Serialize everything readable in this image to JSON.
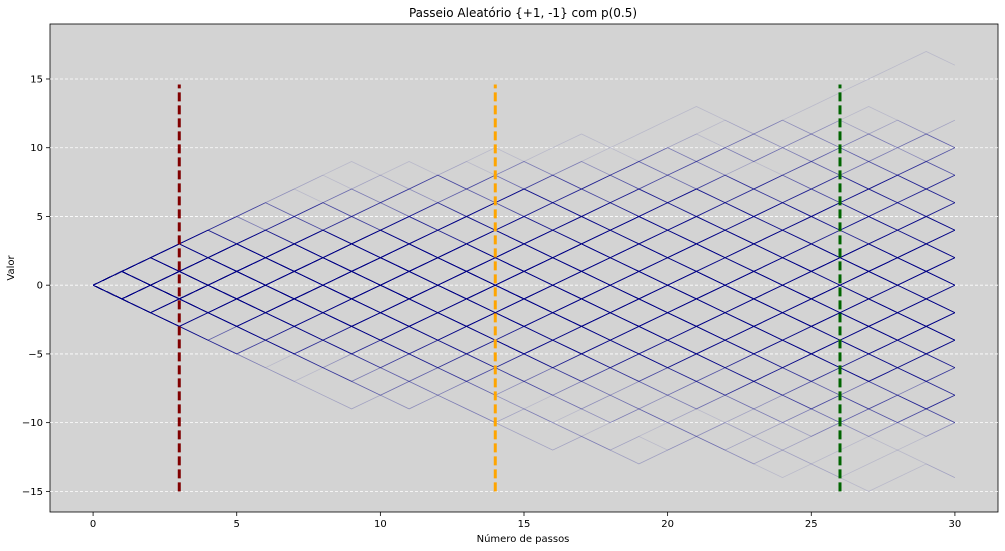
{
  "chart_data": {
    "type": "line",
    "title": "Passeio Aleatório {+1, -1} com p(0.5)",
    "xlabel": "Número de passos",
    "ylabel": "Valor",
    "xlim": [
      -1.5,
      31.5
    ],
    "ylim": [
      -16.5,
      19
    ],
    "x_ticks": [
      0,
      5,
      10,
      15,
      20,
      25,
      30
    ],
    "y_ticks": [
      -15,
      -10,
      -5,
      0,
      5,
      10,
      15
    ],
    "y_tick_labels": [
      "−15",
      "−10",
      "−5",
      "0",
      "5",
      "10",
      "15"
    ],
    "grid": {
      "axis": "y",
      "style": "dashed",
      "color": "#ffffff"
    },
    "background_color": "#d3d3d3",
    "walks": {
      "steps": 30,
      "start_value": 0,
      "step_values": [
        1,
        -1
      ],
      "probability": 0.5,
      "count": 400,
      "color": "#00008b"
    },
    "vertical_markers": [
      {
        "x": 3,
        "y_range": [
          -15,
          14.6
        ],
        "color": "#800000"
      },
      {
        "x": 14,
        "y_range": [
          -15,
          14.6
        ],
        "color": "#ffa500"
      },
      {
        "x": 26,
        "y_range": [
          -15,
          14.6
        ],
        "color": "#006400"
      }
    ]
  }
}
